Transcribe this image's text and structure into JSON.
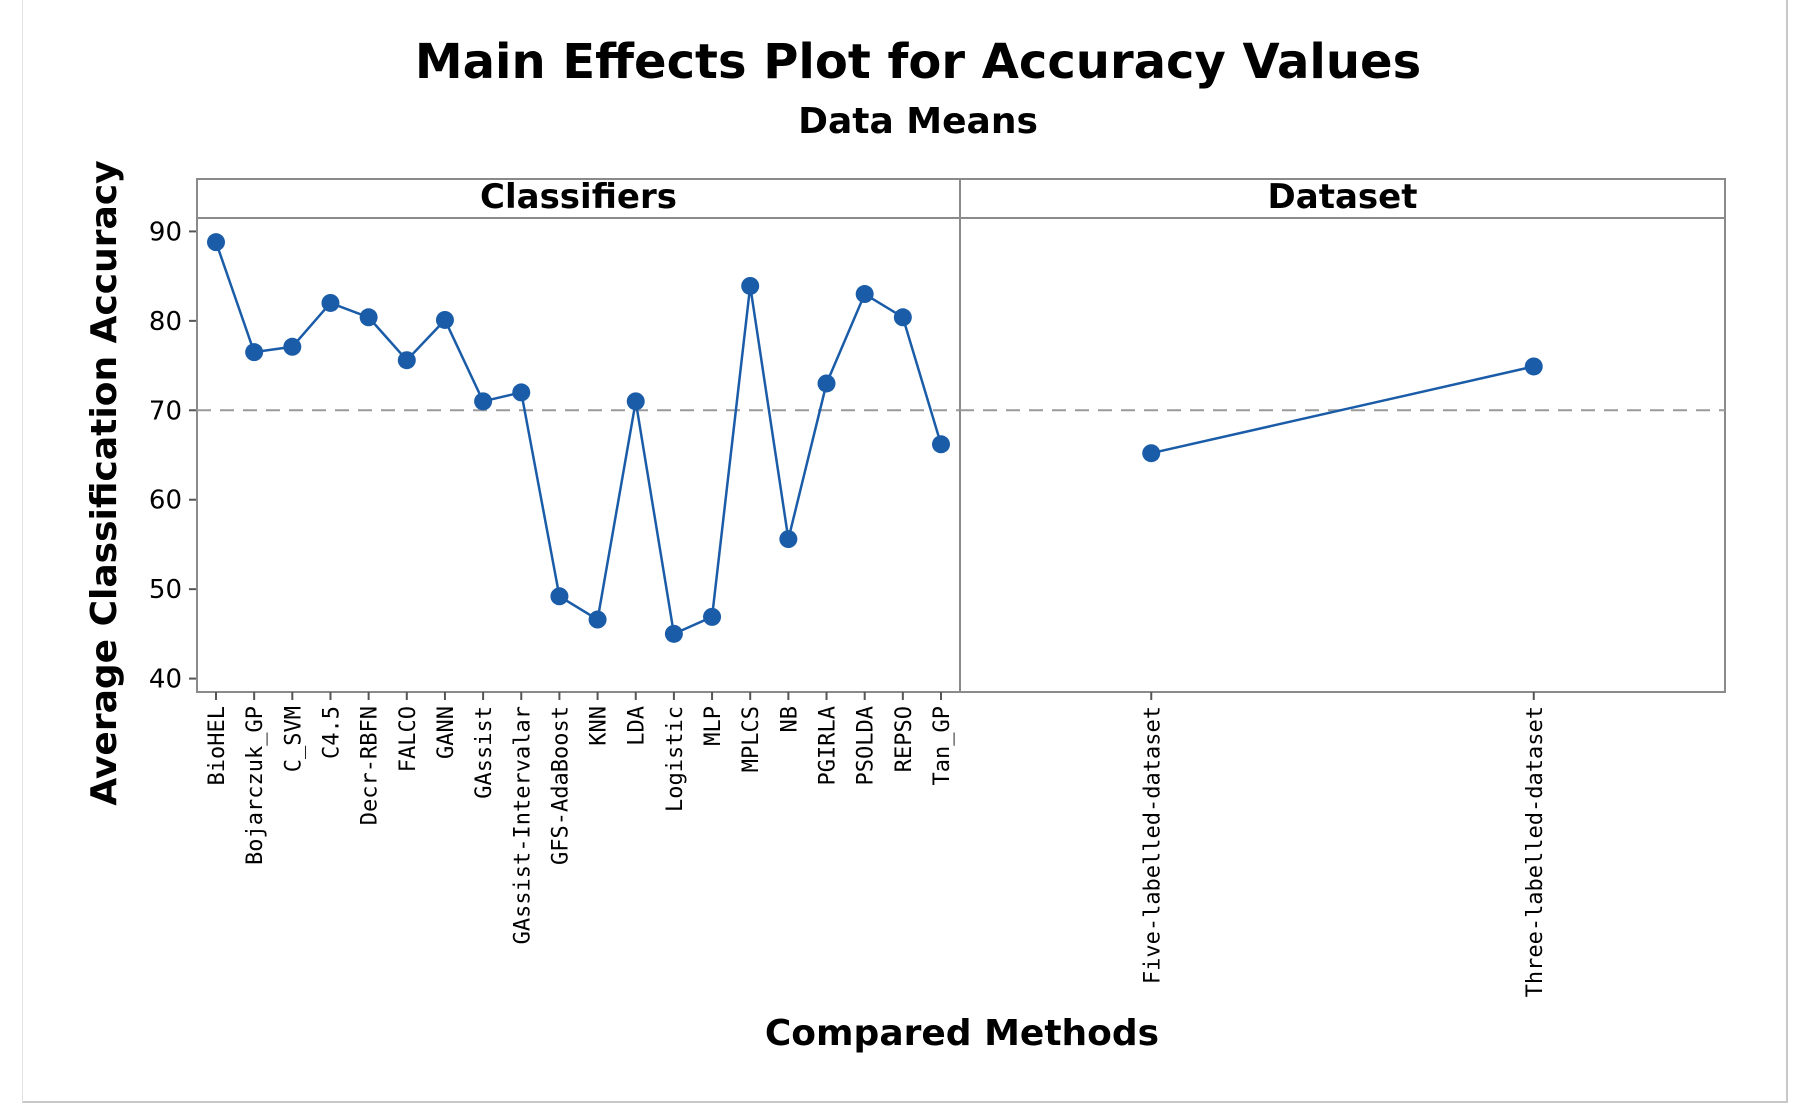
{
  "chart_data": {
    "type": "line",
    "title": "Main Effects Plot for Accuracy Values",
    "subtitle": "Data Means",
    "xlabel": "Compared Methods",
    "ylabel": "Average Classification Accuracy",
    "ylim": [
      38.5,
      91.5
    ],
    "yticks": [
      40,
      50,
      60,
      70,
      80,
      90
    ],
    "reference_line": 70,
    "grid": false,
    "series_color": "#1a5ca8",
    "reference_line_color": "#9a9a9a",
    "panels": [
      {
        "name": "Classifiers",
        "categories": [
          "BioHEL",
          "Bojarczuk_GP",
          "C_SVM",
          "C4.5",
          "Decr-RBFN",
          "FALCO",
          "GANN",
          "GAssist",
          "GAssist-Intervalar",
          "GFS-AdaBoost",
          "KNN",
          "LDA",
          "Logistic",
          "MLP",
          "MPLCS",
          "NB",
          "PGIRLA",
          "PSOLDA",
          "REPSO",
          "Tan_GP"
        ],
        "values": [
          88.8,
          76.5,
          77.1,
          82.0,
          80.4,
          75.6,
          80.1,
          71.0,
          72.0,
          49.2,
          46.6,
          71.0,
          45.0,
          46.9,
          83.9,
          55.6,
          73.0,
          83.0,
          80.4,
          66.2
        ]
      },
      {
        "name": "Dataset",
        "categories": [
          "Five-labelled-dataset",
          "Three-labelled-dataset"
        ],
        "values": [
          65.2,
          74.9
        ]
      }
    ]
  }
}
